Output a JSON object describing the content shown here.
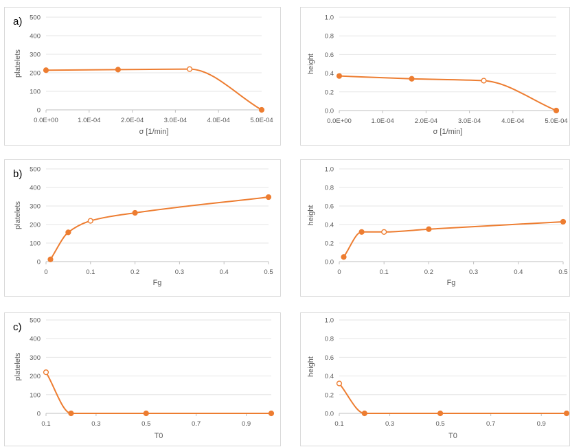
{
  "style": {
    "series_color": "#ed7d31",
    "grid_color": "#e6e6e6",
    "text_color": "#595959"
  },
  "chart_data": [
    {
      "panel_label": "a)",
      "type": "line",
      "xlabel": "σ [1/min]",
      "ylabel": "platelets",
      "xlim": [
        0,
        0.0005
      ],
      "ylim": [
        0,
        500
      ],
      "xticks": [
        0,
        0.0001,
        0.0002,
        0.0003,
        0.0004,
        0.0005
      ],
      "xtick_labels": [
        "0.0E+00",
        "1.0E-04",
        "2.0E-04",
        "3.0E-04",
        "4.0E-04",
        "5.0E-04"
      ],
      "yticks": [
        0,
        100,
        200,
        300,
        400,
        500
      ],
      "ytick_labels": [
        "0",
        "100",
        "200",
        "300",
        "400",
        "500"
      ],
      "points": [
        {
          "x": 0,
          "y": 214,
          "hollow": false
        },
        {
          "x": 0.000167,
          "y": 217,
          "hollow": false
        },
        {
          "x": 0.000333,
          "y": 220,
          "hollow": true
        },
        {
          "x": 0.0005,
          "y": 0,
          "hollow": false
        }
      ]
    },
    {
      "panel_label": "",
      "type": "line",
      "xlabel": "σ [1/min]",
      "ylabel": "height",
      "xlim": [
        0,
        0.0005
      ],
      "ylim": [
        0,
        1
      ],
      "xticks": [
        0,
        0.0001,
        0.0002,
        0.0003,
        0.0004,
        0.0005
      ],
      "xtick_labels": [
        "0.0E+00",
        "1.0E-04",
        "2.0E-04",
        "3.0E-04",
        "4.0E-04",
        "5.0E-04"
      ],
      "yticks": [
        0,
        0.2,
        0.4,
        0.6,
        0.8,
        1.0
      ],
      "ytick_labels": [
        "0.0",
        "0.2",
        "0.4",
        "0.6",
        "0.8",
        "1.0"
      ],
      "points": [
        {
          "x": 0,
          "y": 0.37,
          "hollow": false
        },
        {
          "x": 0.000167,
          "y": 0.34,
          "hollow": false
        },
        {
          "x": 0.000333,
          "y": 0.32,
          "hollow": true
        },
        {
          "x": 0.0005,
          "y": 0.0,
          "hollow": false
        }
      ]
    },
    {
      "panel_label": "b)",
      "type": "line",
      "xlabel": "Fg",
      "ylabel": "platelets",
      "xlim": [
        0,
        0.5
      ],
      "ylim": [
        0,
        500
      ],
      "xticks": [
        0,
        0.1,
        0.2,
        0.3,
        0.4,
        0.5
      ],
      "xtick_labels": [
        "0",
        "0.1",
        "0.2",
        "0.3",
        "0.4",
        "0.5"
      ],
      "yticks": [
        0,
        100,
        200,
        300,
        400,
        500
      ],
      "ytick_labels": [
        "0",
        "100",
        "200",
        "300",
        "400",
        "500"
      ],
      "points": [
        {
          "x": 0.01,
          "y": 12,
          "hollow": false
        },
        {
          "x": 0.05,
          "y": 158,
          "hollow": false
        },
        {
          "x": 0.1,
          "y": 220,
          "hollow": true
        },
        {
          "x": 0.2,
          "y": 263,
          "hollow": false
        },
        {
          "x": 0.5,
          "y": 348,
          "hollow": false
        }
      ]
    },
    {
      "panel_label": "",
      "type": "line",
      "xlabel": "Fg",
      "ylabel": "height",
      "xlim": [
        0,
        0.5
      ],
      "ylim": [
        0,
        1
      ],
      "xticks": [
        0,
        0.1,
        0.2,
        0.3,
        0.4,
        0.5
      ],
      "xtick_labels": [
        "0",
        "0.1",
        "0.2",
        "0.3",
        "0.4",
        "0.5"
      ],
      "yticks": [
        0,
        0.2,
        0.4,
        0.6,
        0.8,
        1.0
      ],
      "ytick_labels": [
        "0.0",
        "0.2",
        "0.4",
        "0.6",
        "0.8",
        "1.0"
      ],
      "points": [
        {
          "x": 0.01,
          "y": 0.05,
          "hollow": false
        },
        {
          "x": 0.05,
          "y": 0.32,
          "hollow": false
        },
        {
          "x": 0.1,
          "y": 0.32,
          "hollow": true
        },
        {
          "x": 0.2,
          "y": 0.35,
          "hollow": false
        },
        {
          "x": 0.5,
          "y": 0.43,
          "hollow": false
        }
      ]
    },
    {
      "panel_label": "c)",
      "type": "line",
      "xlabel": "T0",
      "ylabel": "platelets",
      "xlim": [
        0.1,
        1.0
      ],
      "ylim": [
        0,
        500
      ],
      "xticks": [
        0.1,
        0.3,
        0.5,
        0.7,
        0.9
      ],
      "xtick_labels": [
        "0.1",
        "0.3",
        "0.5",
        "0.7",
        "0.9"
      ],
      "yticks": [
        0,
        100,
        200,
        300,
        400,
        500
      ],
      "ytick_labels": [
        "0",
        "100",
        "200",
        "300",
        "400",
        "500"
      ],
      "points": [
        {
          "x": 0.1,
          "y": 220,
          "hollow": true
        },
        {
          "x": 0.2,
          "y": 0,
          "hollow": false
        },
        {
          "x": 0.5,
          "y": 0,
          "hollow": false
        },
        {
          "x": 1.0,
          "y": 0,
          "hollow": false
        }
      ]
    },
    {
      "panel_label": "",
      "type": "line",
      "xlabel": "T0",
      "ylabel": "height",
      "xlim": [
        0.1,
        1.0
      ],
      "ylim": [
        0,
        1
      ],
      "xticks": [
        0.1,
        0.3,
        0.5,
        0.7,
        0.9
      ],
      "xtick_labels": [
        "0.1",
        "0.3",
        "0.5",
        "0.7",
        "0.9"
      ],
      "yticks": [
        0,
        0.2,
        0.4,
        0.6,
        0.8,
        1.0
      ],
      "ytick_labels": [
        "0.0",
        "0.2",
        "0.4",
        "0.6",
        "0.8",
        "1.0"
      ],
      "points": [
        {
          "x": 0.1,
          "y": 0.32,
          "hollow": true
        },
        {
          "x": 0.2,
          "y": 0.0,
          "hollow": false
        },
        {
          "x": 0.5,
          "y": 0.0,
          "hollow": false
        },
        {
          "x": 1.0,
          "y": 0.0,
          "hollow": false
        }
      ]
    }
  ]
}
